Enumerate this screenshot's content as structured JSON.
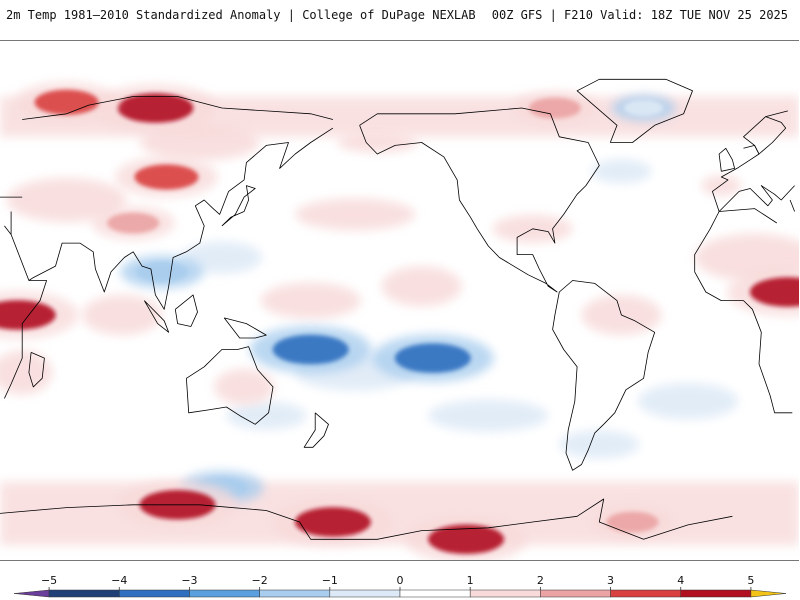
{
  "header": {
    "left_title": "2m Temp 1981–2010 Standardized Anomaly | College of DuPage NEXLAB",
    "right_title": "00Z GFS | F210 Valid: 18Z TUE NOV 25 2025"
  },
  "legend": {
    "ticks": [
      {
        "label": "−5",
        "value": -5
      },
      {
        "label": "−4",
        "value": -4
      },
      {
        "label": "−3",
        "value": -3
      },
      {
        "label": "−2",
        "value": -2
      },
      {
        "label": "−1",
        "value": -1
      },
      {
        "label": "0",
        "value": 0
      },
      {
        "label": "1",
        "value": 1
      },
      {
        "label": "2",
        "value": 2
      },
      {
        "label": "3",
        "value": 3
      },
      {
        "label": "4",
        "value": 4
      },
      {
        "label": "5",
        "value": 5
      }
    ],
    "bins": [
      {
        "from": -5.5,
        "to": -5,
        "color": "#6a3d9a"
      },
      {
        "from": -5,
        "to": -4,
        "color": "#1f3f77"
      },
      {
        "from": -4,
        "to": -3,
        "color": "#2f6fbf"
      },
      {
        "from": -3,
        "to": -2,
        "color": "#5aa0de"
      },
      {
        "from": -2,
        "to": -1,
        "color": "#a9cdee"
      },
      {
        "from": -1,
        "to": 0,
        "color": "#dde9f6"
      },
      {
        "from": 0,
        "to": 1,
        "color": "#ffffff"
      },
      {
        "from": 1,
        "to": 2,
        "color": "#f8dada"
      },
      {
        "from": 2,
        "to": 3,
        "color": "#eba3a3"
      },
      {
        "from": 3,
        "to": 4,
        "color": "#d94040"
      },
      {
        "from": 4,
        "to": 5,
        "color": "#b01020"
      },
      {
        "from": 5,
        "to": 5.5,
        "color": "#f2c318"
      }
    ]
  },
  "map": {
    "projection": "equirectangular",
    "center_longitude": -150,
    "coastline_color": "#000000",
    "anomaly_features": [
      {
        "region": "Arctic north of Russia",
        "lon": 100,
        "lat": 72,
        "anomaly": 4
      },
      {
        "region": "Arctic Siberia",
        "lon": 60,
        "lat": 74,
        "anomaly": 3
      },
      {
        "region": "Canadian Arctic",
        "lon": -80,
        "lat": 72,
        "anomaly": 2
      },
      {
        "region": "Greenland",
        "lon": -40,
        "lat": 72,
        "anomaly": -1
      },
      {
        "region": "Mongolia",
        "lon": 105,
        "lat": 48,
        "anomaly": 3
      },
      {
        "region": "Tibetan Plateau",
        "lon": 90,
        "lat": 32,
        "anomaly": 2
      },
      {
        "region": "Indochina",
        "lon": 103,
        "lat": 15,
        "anomaly": -2
      },
      {
        "region": "Central Africa",
        "lon": 25,
        "lat": 8,
        "anomaly": 4
      },
      {
        "region": "East Africa",
        "lon": 38,
        "lat": 0,
        "anomaly": 4
      },
      {
        "region": "Central Pacific",
        "lon": 170,
        "lat": -12,
        "anomaly": -4
      },
      {
        "region": "South Pacific",
        "lon": -135,
        "lat": -15,
        "anomaly": -4
      },
      {
        "region": "Southern Ocean south of Australia",
        "lon": 130,
        "lat": -60,
        "anomaly": -2
      },
      {
        "region": "Antarctic coast (Wilkes Land)",
        "lon": 110,
        "lat": -66,
        "anomaly": 4
      },
      {
        "region": "Ross Ice Shelf",
        "lon": 180,
        "lat": -72,
        "anomaly": 4
      },
      {
        "region": "Antarctica (Marie Byrd Land)",
        "lon": -120,
        "lat": -78,
        "anomaly": 4
      },
      {
        "region": "Weddell Sea",
        "lon": -45,
        "lat": -72,
        "anomaly": 2
      }
    ]
  }
}
